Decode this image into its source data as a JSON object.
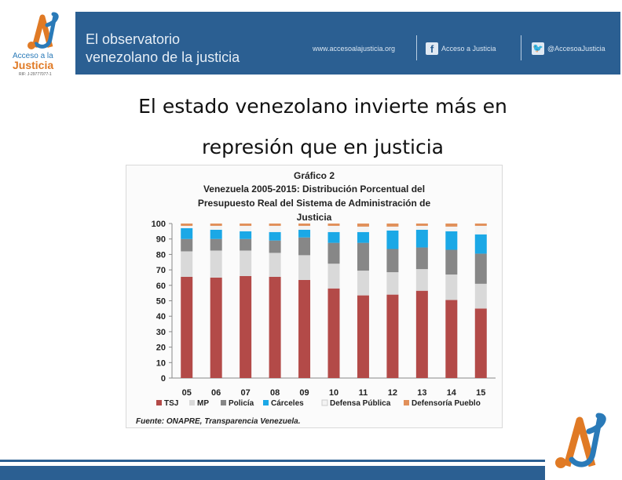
{
  "logo": {
    "line1": "Acceso a la",
    "line2": "Justicia",
    "rif": "RIF: J-29777077-1"
  },
  "banner": {
    "title_line1": "El observatorio",
    "title_line2": "venezolano de la justicia",
    "website": "www.accesoalajusticia.org",
    "facebook_label": "Acceso a Justicia",
    "twitter_label": "@AccesoaJusticia"
  },
  "headline": {
    "line1": "El estado venezolano invierte más en",
    "line2": "represión que en justicia"
  },
  "chart_data": {
    "type": "bar",
    "stacked": true,
    "title_line1": "Gráfico 2",
    "title_line2": "Venezuela 2005-2015: Distribución Porcentual del",
    "title_line3": "Presupuesto Real del Sistema de Administración de",
    "title_line4": "Justicia",
    "categories": [
      "05",
      "06",
      "07",
      "08",
      "09",
      "10",
      "11",
      "12",
      "13",
      "14",
      "15"
    ],
    "series": [
      {
        "name": "TSJ",
        "color": "#b34a48",
        "values": [
          65.5,
          65,
          66,
          65.5,
          63.5,
          58,
          53.5,
          54,
          56.5,
          50.5,
          45
        ]
      },
      {
        "name": "MP",
        "color": "#d9d9d9",
        "values": [
          16.5,
          17.5,
          16.5,
          15.5,
          16,
          16,
          16,
          14.5,
          14,
          16.5,
          16
        ]
      },
      {
        "name": "Policía",
        "color": "#878787",
        "values": [
          8,
          7.5,
          7.5,
          8,
          11.5,
          13.5,
          18,
          15,
          14,
          16,
          19.5
        ]
      },
      {
        "name": "Cárceles",
        "color": "#1ba8e6",
        "values": [
          7,
          6,
          5,
          5.5,
          5,
          7,
          7,
          12,
          11.5,
          12,
          12.5
        ]
      },
      {
        "name": "Defensa Pública",
        "color": "#f3f3f3",
        "values": [
          1.5,
          2.5,
          3.5,
          4,
          2.5,
          4,
          3.5,
          2.5,
          2.5,
          3,
          5.5
        ]
      },
      {
        "name": "Defensoría Pueblo",
        "color": "#e1905a",
        "values": [
          1.5,
          1.5,
          1.5,
          1.5,
          1.5,
          1.5,
          2,
          2,
          1.5,
          2,
          1.5
        ]
      }
    ],
    "y_ticks": [
      "0",
      "10",
      "20",
      "30",
      "40",
      "50",
      "60",
      "70",
      "80",
      "90",
      "100"
    ],
    "ylim": [
      0,
      100
    ],
    "legend_position": "bottom",
    "source": "Fuente: ONAPRE, Transparencia Venezuela."
  },
  "colors": {
    "banner_bg": "#2b5f92",
    "logo_blue": "#2a7ab8",
    "logo_orange": "#e07a25"
  }
}
